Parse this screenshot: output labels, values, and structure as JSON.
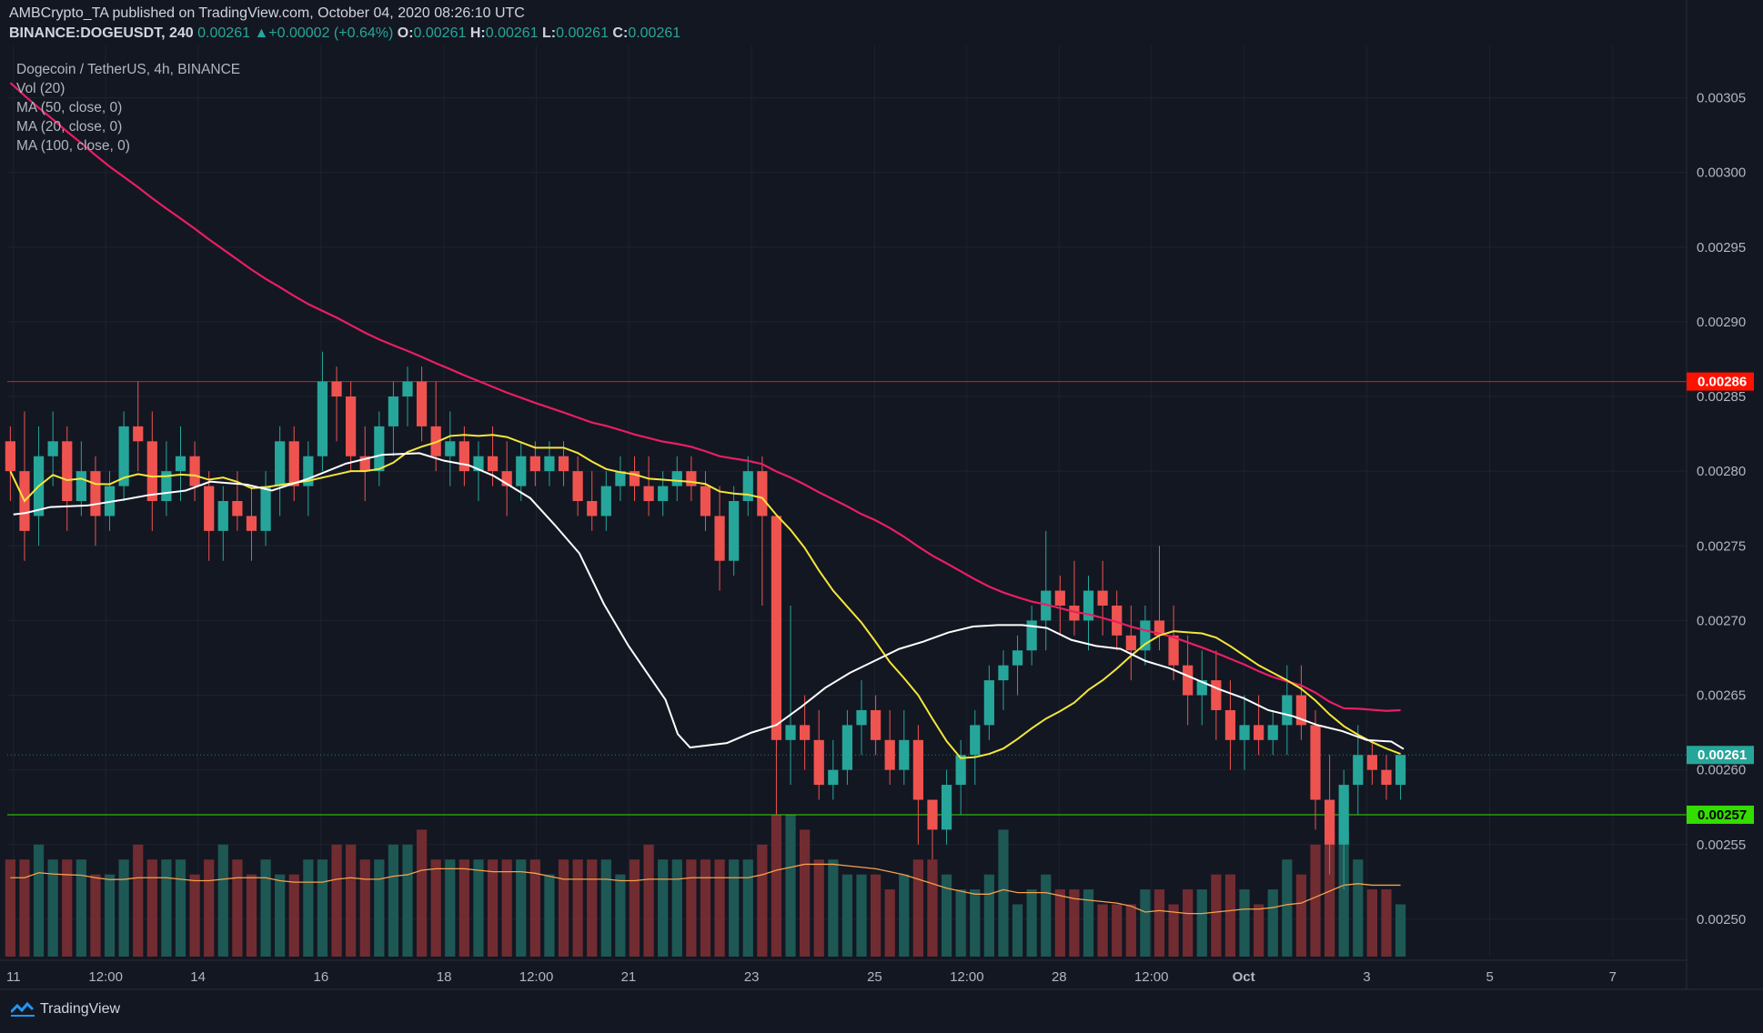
{
  "header": {
    "publisher_line": "AMBCrypto_TA published on TradingView.com, October 04, 2020 08:26:10 UTC",
    "symbol": "BINANCE:DOGEUSDT, 240",
    "last": "0.00261",
    "change_arrow": "▲",
    "change": "+0.00002 (+0.64%)",
    "o_label": "O:",
    "o": "0.00261",
    "h_label": "H:",
    "h": "0.00261",
    "l_label": "L:",
    "l": "0.00261",
    "c_label": "C:",
    "c": "0.00261"
  },
  "legend": {
    "title": "Dogecoin / TetherUS, 4h, BINANCE",
    "vol": "Vol (20)",
    "ma50": "MA (50, close, 0)",
    "ma20": "MA (20, close, 0)",
    "ma100": "MA (100, close, 0)"
  },
  "footer": {
    "brand": "TradingView",
    "logo_icon": "tradingview-logo-icon"
  },
  "colors": {
    "background": "#131722",
    "grid": "#1e222d",
    "up": "#26a69a",
    "down": "#ef5350",
    "vol_up": "#1f5f5b",
    "vol_down": "#7c2f33",
    "ma20": "#ffffff",
    "ma50": "#f5e63b",
    "ma100": "#e91e63",
    "vol_ma": "#f6a04d",
    "resistance": "#ff1100",
    "support": "#33dd00"
  },
  "chart_data": {
    "type": "candlestick",
    "interval": "4h",
    "y_axis": {
      "ticks": [
        "0.00305",
        "0.00300",
        "0.00295",
        "0.00290",
        "0.00285",
        "0.00280",
        "0.00275",
        "0.00270",
        "0.00265",
        "0.00260",
        "0.00255",
        "0.00250"
      ],
      "ylim": [
        0.002475,
        0.003085
      ]
    },
    "x_axis": {
      "ticks": [
        {
          "label": "11",
          "day": 11
        },
        {
          "label": "12:00",
          "day": 12.5
        },
        {
          "label": "14",
          "day": 14
        },
        {
          "label": "16",
          "day": 16
        },
        {
          "label": "18",
          "day": 18
        },
        {
          "label": "12:00",
          "day": 19.5
        },
        {
          "label": "21",
          "day": 21
        },
        {
          "label": "23",
          "day": 23
        },
        {
          "label": "25",
          "day": 25
        },
        {
          "label": "12:00",
          "day": 26.5
        },
        {
          "label": "28",
          "day": 28
        },
        {
          "label": "12:00",
          "day": 29.5
        },
        {
          "label": "Oct",
          "day": 31
        },
        {
          "label": "3",
          "day": 33
        },
        {
          "label": "5",
          "day": 35
        },
        {
          "label": "7",
          "day": 37
        }
      ],
      "xlim": [
        10.9,
        38.2
      ]
    },
    "levels": [
      {
        "name": "resistance",
        "value": 0.00286,
        "label": "0.00286",
        "color": "#ff1100"
      },
      {
        "name": "support",
        "value": 0.00257,
        "label": "0.00257",
        "color": "#33dd00"
      }
    ],
    "last_price": {
      "value": 0.00261,
      "label": "0.00261",
      "color": "#26a69a"
    },
    "candles": [
      [
        0.00282,
        0.00283,
        0.00278,
        0.0028
      ],
      [
        0.0028,
        0.00284,
        0.00274,
        0.00276
      ],
      [
        0.00277,
        0.00283,
        0.00275,
        0.00281
      ],
      [
        0.00281,
        0.00284,
        0.00279,
        0.00282
      ],
      [
        0.00282,
        0.00283,
        0.00276,
        0.00278
      ],
      [
        0.00278,
        0.00282,
        0.00277,
        0.0028
      ],
      [
        0.0028,
        0.00281,
        0.00275,
        0.00277
      ],
      [
        0.00277,
        0.0028,
        0.00276,
        0.00279
      ],
      [
        0.00279,
        0.00284,
        0.00278,
        0.00283
      ],
      [
        0.00283,
        0.00286,
        0.0028,
        0.00282
      ],
      [
        0.00282,
        0.00284,
        0.00276,
        0.00278
      ],
      [
        0.00278,
        0.00282,
        0.00277,
        0.0028
      ],
      [
        0.0028,
        0.00283,
        0.00278,
        0.00281
      ],
      [
        0.00281,
        0.00282,
        0.00278,
        0.00279
      ],
      [
        0.00279,
        0.0028,
        0.00274,
        0.00276
      ],
      [
        0.00276,
        0.00279,
        0.00274,
        0.00278
      ],
      [
        0.00278,
        0.0028,
        0.00276,
        0.00277
      ],
      [
        0.00277,
        0.00279,
        0.00274,
        0.00276
      ],
      [
        0.00276,
        0.0028,
        0.00275,
        0.00279
      ],
      [
        0.00279,
        0.00283,
        0.00277,
        0.00282
      ],
      [
        0.00282,
        0.00283,
        0.00278,
        0.00279
      ],
      [
        0.00279,
        0.00282,
        0.00277,
        0.00281
      ],
      [
        0.00281,
        0.00288,
        0.0028,
        0.00286
      ],
      [
        0.00286,
        0.00287,
        0.00282,
        0.00285
      ],
      [
        0.00285,
        0.00286,
        0.0028,
        0.00281
      ],
      [
        0.00281,
        0.00283,
        0.00278,
        0.0028
      ],
      [
        0.0028,
        0.00284,
        0.00279,
        0.00283
      ],
      [
        0.00283,
        0.00286,
        0.00281,
        0.00285
      ],
      [
        0.00285,
        0.00287,
        0.00283,
        0.00286
      ],
      [
        0.00286,
        0.00287,
        0.00282,
        0.00283
      ],
      [
        0.00283,
        0.00286,
        0.0028,
        0.00281
      ],
      [
        0.00281,
        0.00284,
        0.00279,
        0.00282
      ],
      [
        0.00282,
        0.00283,
        0.00279,
        0.0028
      ],
      [
        0.0028,
        0.00282,
        0.00278,
        0.00281
      ],
      [
        0.00281,
        0.00283,
        0.00279,
        0.0028
      ],
      [
        0.0028,
        0.00282,
        0.00277,
        0.00279
      ],
      [
        0.00279,
        0.00282,
        0.00278,
        0.00281
      ],
      [
        0.00281,
        0.00282,
        0.00279,
        0.0028
      ],
      [
        0.0028,
        0.00282,
        0.00279,
        0.00281
      ],
      [
        0.00281,
        0.00282,
        0.00279,
        0.0028
      ],
      [
        0.0028,
        0.00281,
        0.00277,
        0.00278
      ],
      [
        0.00278,
        0.0028,
        0.00276,
        0.00277
      ],
      [
        0.00277,
        0.0028,
        0.00276,
        0.00279
      ],
      [
        0.00279,
        0.00281,
        0.00278,
        0.0028
      ],
      [
        0.0028,
        0.00281,
        0.00278,
        0.00279
      ],
      [
        0.00279,
        0.00281,
        0.00277,
        0.00278
      ],
      [
        0.00278,
        0.0028,
        0.00277,
        0.00279
      ],
      [
        0.00279,
        0.00281,
        0.00278,
        0.0028
      ],
      [
        0.0028,
        0.00281,
        0.00278,
        0.00279
      ],
      [
        0.00279,
        0.0028,
        0.00276,
        0.00277
      ],
      [
        0.00277,
        0.00279,
        0.00272,
        0.00274
      ],
      [
        0.00274,
        0.00279,
        0.00273,
        0.00278
      ],
      [
        0.00278,
        0.00281,
        0.00277,
        0.0028
      ],
      [
        0.0028,
        0.00281,
        0.00271,
        0.00277
      ],
      [
        0.00277,
        0.00277,
        0.00257,
        0.00262
      ],
      [
        0.00262,
        0.00271,
        0.00259,
        0.00263
      ],
      [
        0.00263,
        0.00265,
        0.0026,
        0.00262
      ],
      [
        0.00262,
        0.00264,
        0.00258,
        0.00259
      ],
      [
        0.00259,
        0.00262,
        0.00258,
        0.0026
      ],
      [
        0.0026,
        0.00264,
        0.00259,
        0.00263
      ],
      [
        0.00263,
        0.00266,
        0.00261,
        0.00264
      ],
      [
        0.00264,
        0.00265,
        0.00261,
        0.00262
      ],
      [
        0.00262,
        0.00264,
        0.00259,
        0.0026
      ],
      [
        0.0026,
        0.00264,
        0.00259,
        0.00262
      ],
      [
        0.00262,
        0.00263,
        0.00255,
        0.00258
      ],
      [
        0.00258,
        0.00258,
        0.00254,
        0.00256
      ],
      [
        0.00256,
        0.0026,
        0.00255,
        0.00259
      ],
      [
        0.00259,
        0.00262,
        0.00257,
        0.00261
      ],
      [
        0.00261,
        0.00264,
        0.00259,
        0.00263
      ],
      [
        0.00263,
        0.00267,
        0.00262,
        0.00266
      ],
      [
        0.00266,
        0.00268,
        0.00264,
        0.00267
      ],
      [
        0.00267,
        0.00269,
        0.00265,
        0.00268
      ],
      [
        0.00268,
        0.00271,
        0.00267,
        0.0027
      ],
      [
        0.0027,
        0.00276,
        0.00268,
        0.00272
      ],
      [
        0.00272,
        0.00273,
        0.00269,
        0.00271
      ],
      [
        0.00271,
        0.00274,
        0.00269,
        0.0027
      ],
      [
        0.0027,
        0.00273,
        0.00268,
        0.00272
      ],
      [
        0.00272,
        0.00274,
        0.00269,
        0.00271
      ],
      [
        0.00271,
        0.00272,
        0.00268,
        0.00269
      ],
      [
        0.00269,
        0.00271,
        0.00266,
        0.00268
      ],
      [
        0.00268,
        0.00271,
        0.00267,
        0.0027
      ],
      [
        0.0027,
        0.00275,
        0.00268,
        0.00269
      ],
      [
        0.00269,
        0.00271,
        0.00266,
        0.00267
      ],
      [
        0.00267,
        0.00269,
        0.00263,
        0.00265
      ],
      [
        0.00265,
        0.00268,
        0.00263,
        0.00266
      ],
      [
        0.00266,
        0.00268,
        0.00262,
        0.00264
      ],
      [
        0.00264,
        0.00266,
        0.0026,
        0.00262
      ],
      [
        0.00262,
        0.00265,
        0.0026,
        0.00263
      ],
      [
        0.00263,
        0.00265,
        0.00261,
        0.00262
      ],
      [
        0.00262,
        0.00264,
        0.00261,
        0.00263
      ],
      [
        0.00263,
        0.00267,
        0.00261,
        0.00265
      ],
      [
        0.00265,
        0.00267,
        0.00262,
        0.00263
      ],
      [
        0.00263,
        0.00264,
        0.00256,
        0.00258
      ],
      [
        0.00258,
        0.00261,
        0.00253,
        0.00255
      ],
      [
        0.00255,
        0.0026,
        0.00252,
        0.00259
      ],
      [
        0.00259,
        0.00263,
        0.00257,
        0.00261
      ],
      [
        0.00261,
        0.00262,
        0.00259,
        0.0026
      ],
      [
        0.0026,
        0.00261,
        0.00258,
        0.00259
      ],
      [
        0.00259,
        0.00261,
        0.00258,
        0.00261
      ]
    ],
    "volume": [
      0.00254,
      0.00254,
      0.00255,
      0.00254,
      0.00254,
      0.00254,
      0.00253,
      0.00253,
      0.00254,
      0.00255,
      0.00254,
      0.00254,
      0.00254,
      0.00253,
      0.00254,
      0.00255,
      0.00254,
      0.00253,
      0.00254,
      0.00253,
      0.00253,
      0.00254,
      0.00254,
      0.00255,
      0.00255,
      0.00254,
      0.00254,
      0.00255,
      0.00255,
      0.00256,
      0.00254,
      0.00254,
      0.00254,
      0.00254,
      0.00254,
      0.00254,
      0.00254,
      0.00254,
      0.00253,
      0.00254,
      0.00254,
      0.00254,
      0.00254,
      0.00253,
      0.00254,
      0.00255,
      0.00254,
      0.00254,
      0.00254,
      0.00254,
      0.00254,
      0.00254,
      0.00254,
      0.00255,
      0.00257,
      0.00257,
      0.00256,
      0.00254,
      0.00254,
      0.00253,
      0.00253,
      0.00253,
      0.00252,
      0.00253,
      0.00254,
      0.00254,
      0.00253,
      0.00252,
      0.00252,
      0.00253,
      0.00256,
      0.00251,
      0.00252,
      0.00253,
      0.00252,
      0.00252,
      0.00252,
      0.00251,
      0.00251,
      0.00251,
      0.00252,
      0.00252,
      0.00251,
      0.00252,
      0.00252,
      0.00253,
      0.00253,
      0.00252,
      0.00251,
      0.00252,
      0.00254,
      0.00253,
      0.00255,
      0.00256,
      0.00256,
      0.00254,
      0.00252,
      0.00252,
      0.00251
    ],
    "ma20": [
      0.002771,
      0.002772,
      0.002776,
      0.002777,
      0.002781,
      0.002784,
      0.002787,
      0.002793,
      0.002791,
      0.002787,
      0.002795,
      0.002805,
      0.002811,
      0.002812,
      0.002807,
      0.002804,
      0.002797,
      0.002782,
      0.002764,
      0.002745,
      0.002711,
      0.002683,
      0.002665,
      0.002647,
      0.002624,
      0.002615,
      0.002616,
      0.002618,
      0.002625,
      0.00263,
      0.002642,
      0.002655,
      0.002665,
      0.002673,
      0.002681,
      0.002686,
      0.002692,
      0.002696,
      0.002697,
      0.002697,
      0.002695,
      0.002687,
      0.002683,
      0.002681,
      0.002673,
      0.002668,
      0.002661,
      0.002654,
      0.002648,
      0.00264,
      0.002636,
      0.00263,
      0.002626,
      0.00262,
      0.002619,
      0.002614
    ],
    "ma20_days": [
      11.0,
      11.2,
      11.6,
      12.2,
      12.8,
      13.2,
      13.8,
      14.2,
      14.8,
      15.2,
      15.8,
      16.4,
      17.0,
      17.6,
      18.0,
      18.4,
      18.8,
      19.4,
      19.8,
      20.2,
      20.6,
      21.0,
      21.3,
      21.6,
      21.8,
      22.0,
      22.2,
      22.6,
      23.0,
      23.4,
      23.8,
      24.2,
      24.6,
      25.0,
      25.4,
      25.8,
      26.2,
      26.6,
      27.0,
      27.4,
      27.8,
      28.2,
      28.6,
      29.0,
      29.4,
      29.8,
      30.2,
      30.6,
      31.0,
      31.4,
      31.8,
      32.2,
      32.6,
      33.0,
      33.4,
      33.6
    ],
    "ma20_note": "",
    "series_labels": {
      "ma20": "MA (20, close, 0)",
      "ma50": "MA (50, close, 0)",
      "ma100": "MA (100, close, 0)",
      "vol": "Vol (20)"
    }
  }
}
